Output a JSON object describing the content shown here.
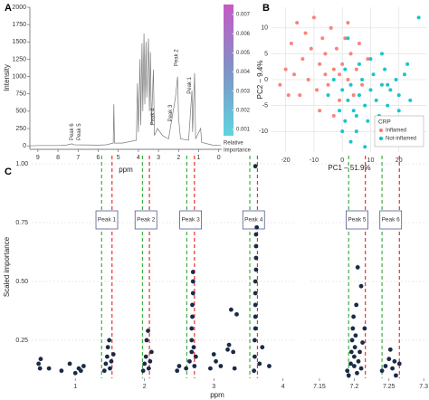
{
  "chart_data": [
    {
      "type": "line",
      "panel": "A",
      "xlabel": "ppm",
      "ylabel": "Intensity",
      "x": [
        9.4,
        9,
        8,
        7.6,
        7.3,
        7.2,
        6.0,
        5.6,
        5.25,
        5.22,
        5.19,
        4.8,
        4.1,
        4.05,
        4.0,
        3.92,
        3.88,
        3.82,
        3.78,
        3.72,
        3.68,
        3.62,
        3.58,
        3.5,
        3.45,
        3.4,
        3.35,
        3.25,
        3.2,
        3.05,
        2.8,
        2.5,
        2.15,
        2.05,
        2.0,
        1.9,
        1.5,
        1.33,
        1.3,
        1.2,
        1.15,
        0.9,
        0.85,
        0.3,
        -0.1
      ],
      "values": [
        0,
        5,
        5,
        10,
        30,
        15,
        10,
        15,
        40,
        600,
        40,
        40,
        80,
        900,
        200,
        1250,
        300,
        1480,
        500,
        1620,
        600,
        1500,
        700,
        1550,
        500,
        1350,
        300,
        1100,
        150,
        250,
        150,
        100,
        700,
        1000,
        400,
        100,
        80,
        800,
        200,
        1050,
        100,
        250,
        50,
        10,
        5
      ],
      "color": "#7a7a7a",
      "xlim": [
        9.4,
        -0.15
      ],
      "xticks": [
        9,
        8,
        7,
        6,
        5,
        4,
        3,
        2,
        1,
        0
      ],
      "ylim": [
        -50,
        2000
      ],
      "yticks": [
        0,
        250,
        500,
        750,
        1000,
        1250,
        1500,
        1750,
        2000
      ],
      "annotations": [
        {
          "text": "Peak 1",
          "x": 1.45,
          "y": 750
        },
        {
          "text": "Peak 2",
          "x": 2.1,
          "y": 1150
        },
        {
          "text": "Peak 3",
          "x": 2.4,
          "y": 350
        },
        {
          "text": "Peak 4",
          "x": 3.28,
          "y": 300
        },
        {
          "text": "Peak 5",
          "x": 6.95,
          "y": 80
        },
        {
          "text": "Peak 6",
          "x": 7.3,
          "y": 80
        }
      ],
      "colorbar": {
        "label": [
          "Relative",
          "Importance"
        ],
        "lim": [
          0.00067,
          0.00752
        ],
        "ticks": [
          0.001,
          0.002,
          0.003,
          0.004,
          0.005,
          0.006,
          0.007
        ],
        "colors": [
          "#5fd4e0",
          "#7f92c4",
          "#c55ac6"
        ]
      }
    },
    {
      "type": "scatter",
      "panel": "B",
      "xlabel": "PC1 – 51.9%",
      "ylabel": "PC2 – 9.4%",
      "xlim": [
        -25,
        30
      ],
      "xticks": [
        -20,
        -10,
        0,
        10,
        20
      ],
      "ylim": [
        -14,
        14
      ],
      "yticks": [
        -10,
        -5,
        0,
        5,
        10
      ],
      "grid": true,
      "legend_title": "CRP",
      "legend": "lower right",
      "series": [
        {
          "name": "Inflamed",
          "color": "#f8766d",
          "x": [
            -20,
            -18,
            -16,
            -15,
            -14,
            -13,
            -12,
            -11,
            -10,
            -9,
            -8,
            -7,
            -6,
            -5,
            -4,
            -3,
            -2,
            -1,
            0,
            1,
            2,
            3,
            4,
            5,
            6,
            -22,
            -19,
            -17,
            -8,
            -3,
            7,
            9,
            -6,
            -1,
            2
          ],
          "values": [
            2,
            7,
            11,
            -3,
            4,
            9,
            0,
            6,
            12,
            -2,
            3,
            8,
            5,
            -1,
            10,
            2,
            6,
            -4,
            3,
            8,
            0,
            5,
            -3,
            2,
            7,
            -1,
            -3,
            1,
            -6,
            -7,
            -1,
            4,
            1,
            1,
            11
          ]
        },
        {
          "name": "Not-inflamed",
          "color": "#00bfc4",
          "x": [
            -5,
            -3,
            -1,
            0,
            1,
            2,
            3,
            4,
            5,
            6,
            7,
            8,
            9,
            10,
            11,
            12,
            13,
            14,
            15,
            16,
            17,
            18,
            19,
            20,
            22,
            24,
            6,
            10,
            14,
            3,
            8,
            27,
            1,
            5,
            12,
            16,
            20,
            23,
            2,
            0
          ],
          "values": [
            -3,
            0,
            -6,
            -2,
            -8,
            -4,
            -1,
            -6,
            -10,
            -3,
            0,
            -5,
            -8,
            -2,
            1,
            -4,
            -7,
            -1,
            2,
            -5,
            -2,
            -9,
            0,
            -3,
            1,
            -4,
            3,
            4,
            5,
            -12,
            -13,
            12,
            2,
            -7,
            -10,
            -1,
            -6,
            3,
            8,
            -10
          ]
        }
      ]
    },
    {
      "type": "scatter",
      "panel": "C",
      "xlabel": "ppm",
      "ylabel": "Scaled importance",
      "xlim": [
        0.37,
        4.16
      ],
      "xticks": [
        1,
        2,
        3,
        4
      ],
      "ylim": [
        0.088,
        1.035
      ],
      "yticks": [
        {
          "value": 0.25,
          "label": "0.25"
        },
        {
          "value": 0.5,
          "label": "0.50"
        },
        {
          "value": 0.75,
          "label": "0.75"
        },
        {
          "value": 1,
          "label": "1.00"
        }
      ],
      "grid": true,
      "region_colors": [
        "#3cb043",
        "#e8342e"
      ],
      "regions": [
        {
          "label": "Peak 1",
          "start": 1.38,
          "end": 1.53
        },
        {
          "label": "Peak 2",
          "start": 1.97,
          "end": 2.07
        },
        {
          "label": "Peak 3",
          "start": 2.61,
          "end": 2.72
        },
        {
          "label": "Peak 4",
          "start": 3.52,
          "end": 3.63
        }
      ],
      "series": [
        {
          "color": "#1b2a48",
          "x": [
            0.47,
            0.49,
            0.5,
            0.62,
            0.8,
            0.92,
            1.0,
            1.05,
            1.08,
            1.12,
            1.42,
            1.44,
            1.46,
            1.47,
            1.49,
            1.5,
            1.52,
            1.55,
            1.98,
            2.0,
            2.02,
            2.03,
            2.05,
            2.06,
            2.08,
            2.1,
            2.47,
            2.5,
            2.6,
            2.65,
            2.68,
            2.68,
            2.68,
            2.69,
            2.69,
            2.7,
            2.7,
            2.7,
            2.71,
            2.72,
            2.74,
            2.95,
            3.0,
            3.03,
            3.1,
            3.2,
            3.22,
            3.25,
            3.28,
            3.3,
            3.33,
            3.58,
            3.59,
            3.59,
            3.6,
            3.6,
            3.6,
            3.6,
            3.6,
            3.61,
            3.61,
            3.61,
            3.61,
            3.62,
            3.6,
            3.66,
            3.7,
            3.8
          ],
          "values": [
            0.15,
            0.13,
            0.17,
            0.13,
            0.12,
            0.15,
            0.11,
            0.13,
            0.12,
            0.14,
            0.12,
            0.15,
            0.18,
            0.22,
            0.25,
            0.13,
            0.16,
            0.19,
            0.12,
            0.15,
            0.18,
            0.25,
            0.29,
            0.13,
            0.16,
            0.2,
            0.12,
            0.14,
            0.13,
            0.16,
            0.2,
            0.25,
            0.3,
            0.35,
            0.4,
            0.45,
            0.5,
            0.54,
            0.22,
            0.14,
            0.18,
            0.13,
            0.19,
            0.16,
            0.14,
            0.21,
            0.23,
            0.38,
            0.2,
            0.13,
            0.36,
            0.12,
            0.18,
            0.25,
            0.3,
            0.35,
            0.4,
            0.45,
            0.5,
            0.55,
            0.6,
            0.65,
            0.7,
            0.73,
            0.99,
            0.15,
            0.22,
            0.14
          ]
        }
      ]
    },
    {
      "type": "scatter",
      "xlim": [
        7.137,
        7.305
      ],
      "xticks": [
        7.15,
        7.2,
        7.25,
        7.3
      ],
      "ylim": [
        0.088,
        1.035
      ],
      "yticks": [
        0.25,
        0.5,
        0.75,
        1
      ],
      "grid": true,
      "region_colors": [
        "#3cb043",
        "#e8342e"
      ],
      "regions": [
        {
          "label": "Peak 5",
          "start": 7.192,
          "end": 7.216
        },
        {
          "label": "Peak 6",
          "start": 7.24,
          "end": 7.265
        }
      ],
      "series": [
        {
          "color": "#1b2a48",
          "x": [
            7.19,
            7.195,
            7.196,
            7.197,
            7.198,
            7.199,
            7.2,
            7.2,
            7.201,
            7.202,
            7.203,
            7.205,
            7.206,
            7.208,
            7.21,
            7.212,
            7.215,
            7.192,
            7.204,
            7.21,
            7.24,
            7.245,
            7.25,
            7.252,
            7.255,
            7.258,
            7.26,
            7.265
          ],
          "values": [
            0.12,
            0.15,
            0.2,
            0.25,
            0.3,
            0.35,
            0.14,
            0.18,
            0.22,
            0.27,
            0.4,
            0.56,
            0.16,
            0.2,
            0.13,
            0.24,
            0.3,
            0.1,
            0.11,
            0.48,
            0.12,
            0.14,
            0.17,
            0.21,
            0.13,
            0.16,
            0.1,
            0.15
          ]
        }
      ]
    }
  ]
}
